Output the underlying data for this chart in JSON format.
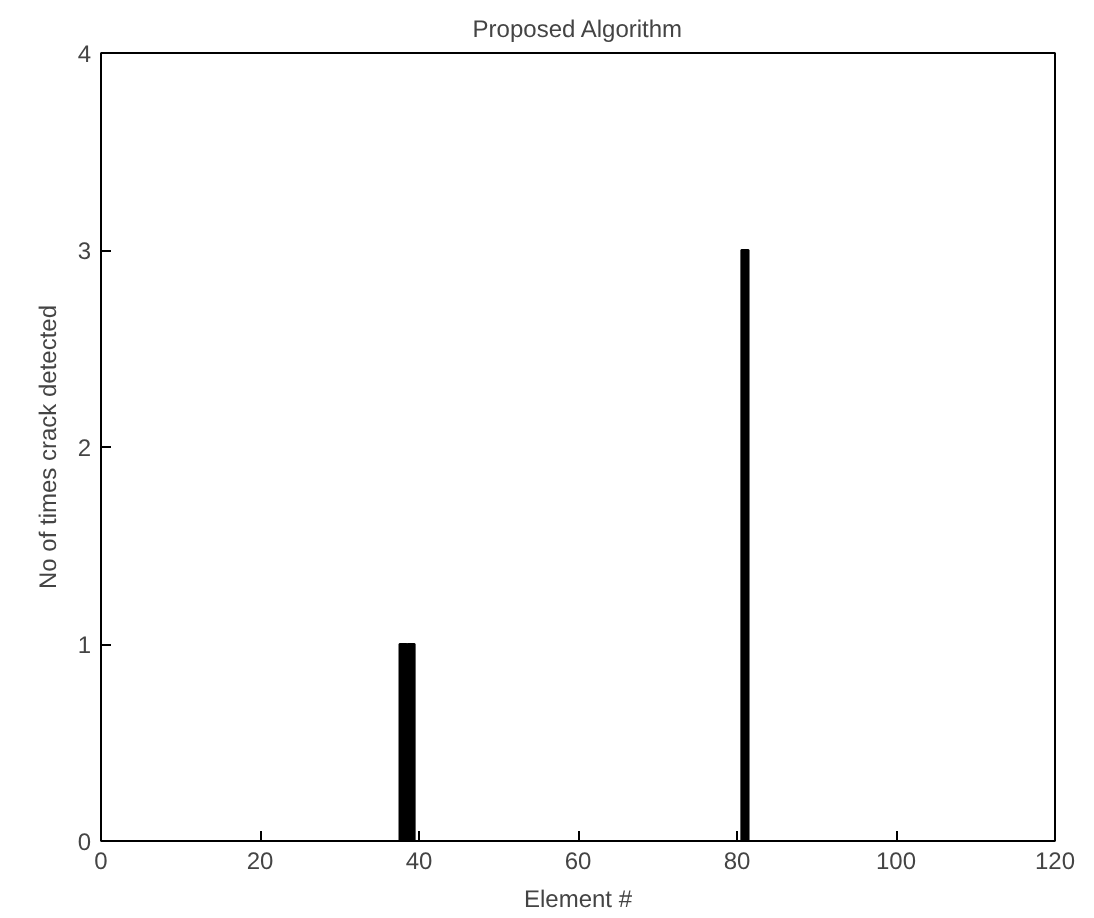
{
  "chart_data": {
    "type": "bar",
    "title": "Proposed Algorithm",
    "xlabel": "Element #",
    "ylabel": "No of times crack detected",
    "x": [
      38,
      39,
      81
    ],
    "values": [
      1,
      1,
      3
    ],
    "color": "#000000",
    "xlim": [
      0,
      120
    ],
    "xticks": [
      0,
      20,
      40,
      60,
      80,
      100,
      120
    ],
    "ylim": [
      0,
      4
    ],
    "yticks": [
      0,
      1,
      2,
      3,
      4
    ],
    "grid": false
  }
}
